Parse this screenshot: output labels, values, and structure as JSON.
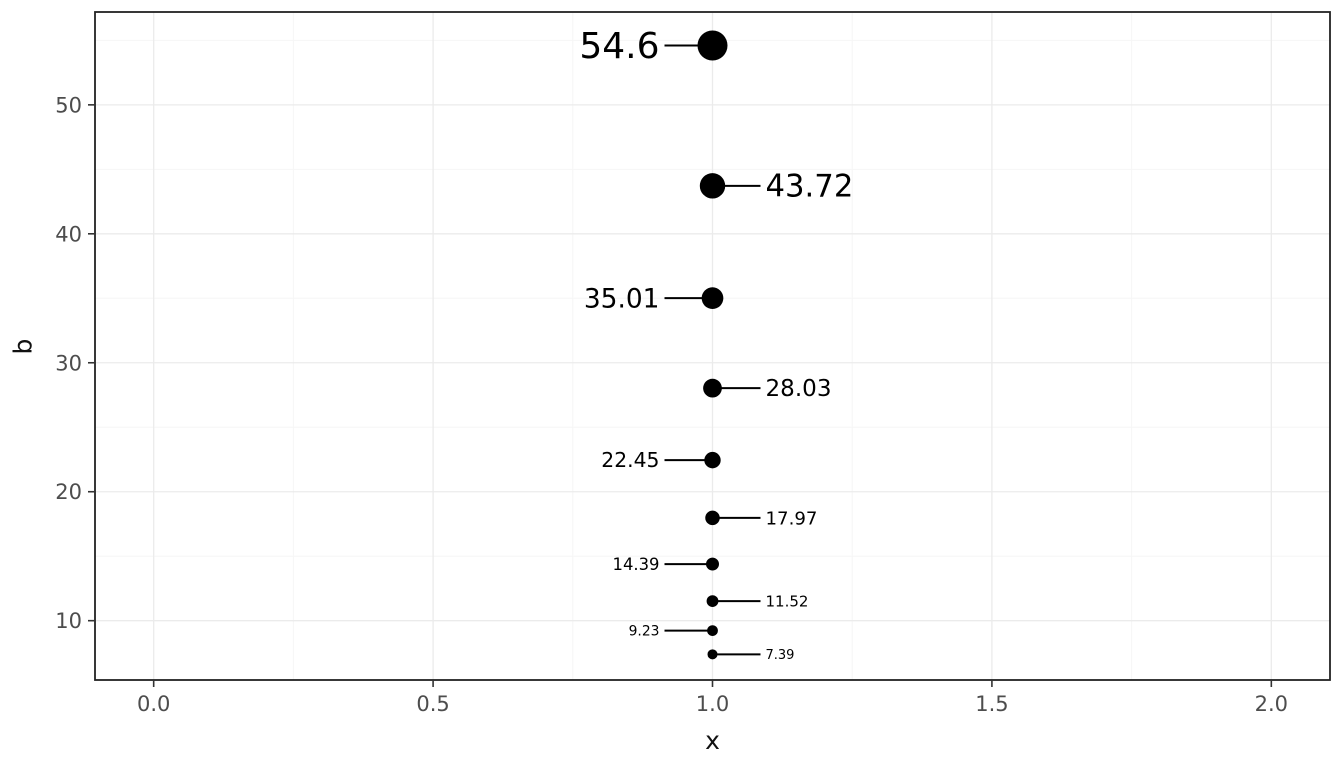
{
  "chart_data": {
    "type": "scatter",
    "title": "",
    "xlabel": "x",
    "ylabel": "b",
    "xlim": [
      -0.105,
      2.105
    ],
    "ylim": [
      5.4,
      57.2
    ],
    "grid": true,
    "legend": "none",
    "x_axis": {
      "tick_values": [
        0.0,
        0.5,
        1.0,
        1.5,
        2.0
      ],
      "tick_labels": [
        "0.0",
        "0.5",
        "1.0",
        "1.5",
        "2.0"
      ]
    },
    "y_axis": {
      "tick_values": [
        10,
        20,
        30,
        40,
        50
      ],
      "tick_labels": [
        "10",
        "20",
        "30",
        "40",
        "50"
      ]
    },
    "size_encoding": "point radius and label font size scale with b value",
    "points": [
      {
        "x": 1,
        "b": 54.6,
        "label": "54.6",
        "label_side": "left"
      },
      {
        "x": 1,
        "b": 43.72,
        "label": "43.72",
        "label_side": "right"
      },
      {
        "x": 1,
        "b": 35.01,
        "label": "35.01",
        "label_side": "left"
      },
      {
        "x": 1,
        "b": 28.03,
        "label": "28.03",
        "label_side": "right"
      },
      {
        "x": 1,
        "b": 22.45,
        "label": "22.45",
        "label_side": "left"
      },
      {
        "x": 1,
        "b": 17.97,
        "label": "17.97",
        "label_side": "right"
      },
      {
        "x": 1,
        "b": 14.39,
        "label": "14.39",
        "label_side": "left"
      },
      {
        "x": 1,
        "b": 11.52,
        "label": "11.52",
        "label_side": "right"
      },
      {
        "x": 1,
        "b": 9.23,
        "label": "9.23",
        "label_side": "left"
      },
      {
        "x": 1,
        "b": 7.39,
        "label": "7.39",
        "label_side": "right"
      }
    ],
    "colors": {
      "point": "#000000",
      "label_text": "#000000",
      "segment": "#000000",
      "grid_major": "#ebebeb",
      "grid_minor": "#f6f6f6",
      "panel_border": "#222222",
      "tick_mark": "#333333",
      "axis_text": "#4d4d4d",
      "axis_title": "#111111",
      "background": "#ffffff"
    }
  }
}
